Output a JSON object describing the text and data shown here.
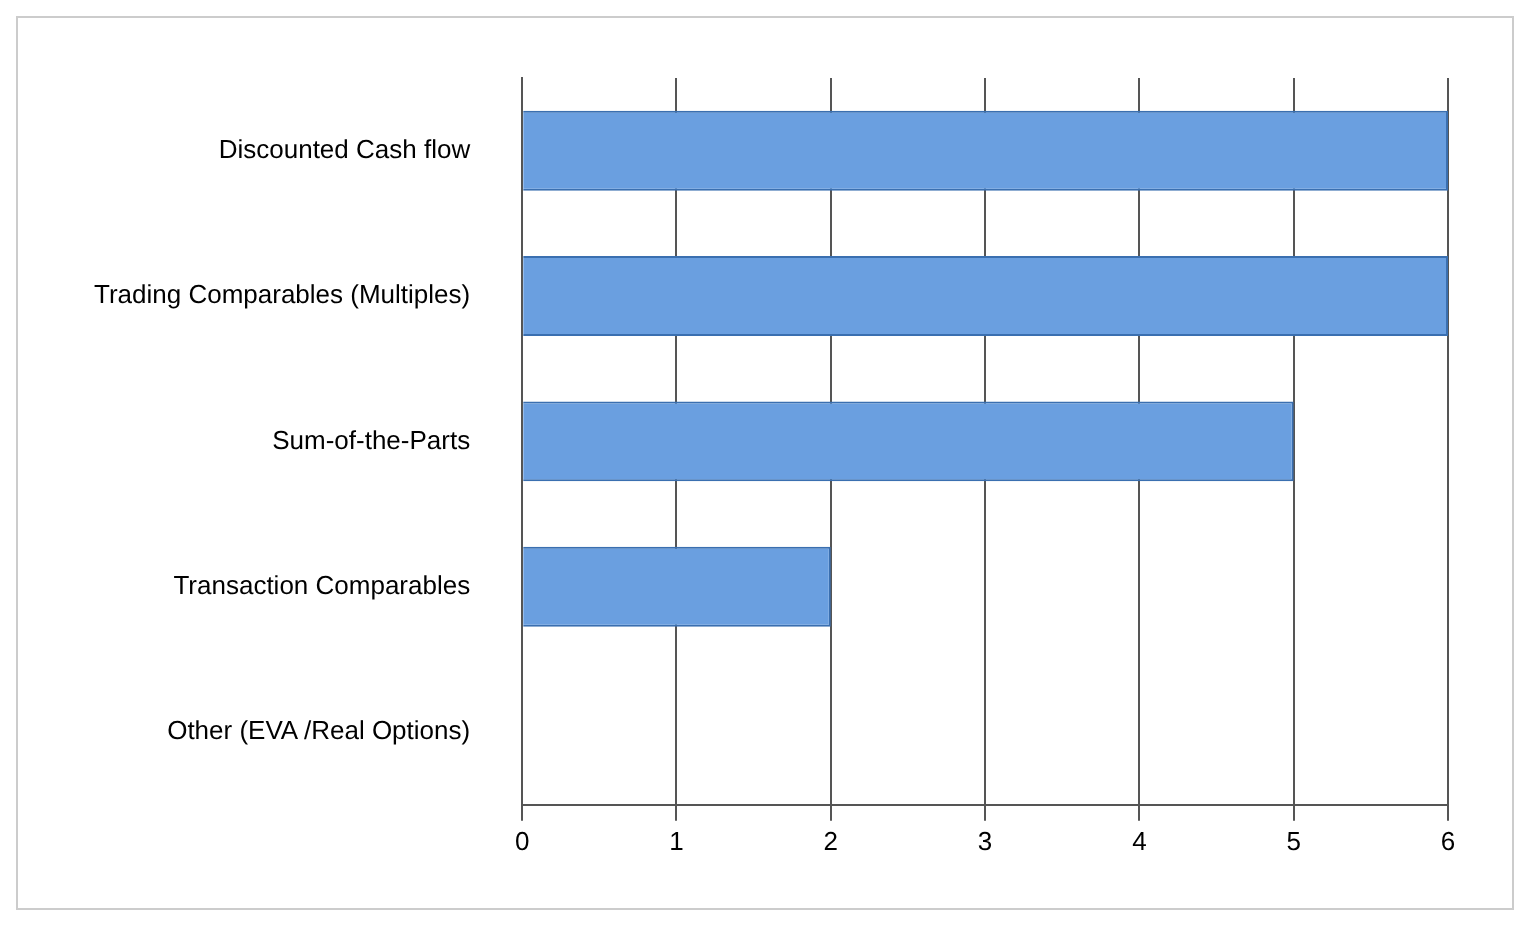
{
  "chart_data": {
    "type": "bar",
    "orientation": "horizontal",
    "categories": [
      "Discounted Cash flow",
      "Trading Comparables (Multiples)",
      "Sum-of-the-Parts",
      "Transaction Comparables",
      "Other (EVA /Real Options)"
    ],
    "values": [
      6,
      6,
      5,
      2,
      0
    ],
    "color": "#6a9fe0",
    "xlim": [
      0,
      6
    ],
    "xticks": [
      0,
      1,
      2,
      3,
      4,
      5,
      6
    ],
    "grid": "x",
    "legend": false
  }
}
